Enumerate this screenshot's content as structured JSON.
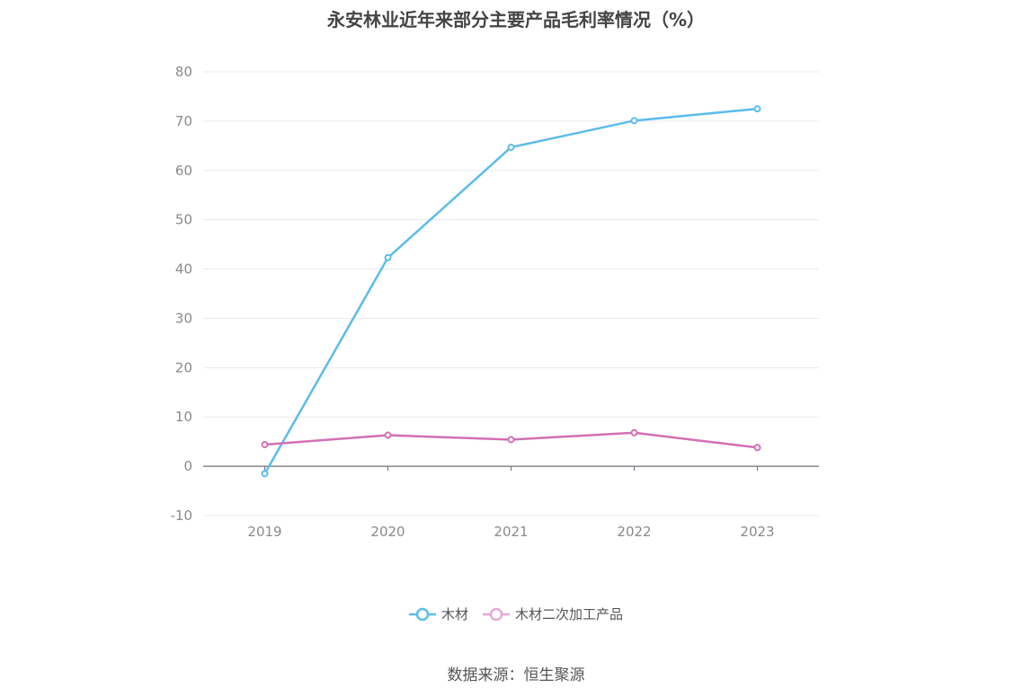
{
  "title": "永安林业近年来部分主要产品毛利率情况（%）",
  "source": "数据来源：恒生聚源",
  "chart_data": {
    "type": "line",
    "title": "永安林业近年来部分主要产品毛利率情况（%）",
    "categories": [
      "2019",
      "2020",
      "2021",
      "2022",
      "2023"
    ],
    "series": [
      {
        "name": "木材",
        "values": [
          -1.5,
          42.3,
          64.7,
          70.1,
          72.5
        ],
        "color": "#5bbcec"
      },
      {
        "name": "木材二次加工产品",
        "values": [
          4.4,
          6.3,
          5.4,
          6.8,
          3.8
        ],
        "color": "#d36fb5"
      }
    ],
    "ylim": [
      -10,
      80
    ],
    "yticks": [
      -10,
      0,
      10,
      20,
      30,
      40,
      50,
      60,
      70,
      80
    ],
    "grid": true,
    "legend_position": "bottom"
  }
}
